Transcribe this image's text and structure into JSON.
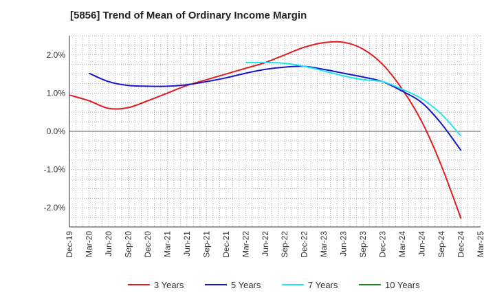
{
  "chart_data": {
    "type": "line",
    "title": "[5856]  Trend of Mean of Ordinary Income Margin",
    "xlabel": "",
    "ylabel": "",
    "x_ticks": [
      "Dec-19",
      "Mar-20",
      "Jun-20",
      "Sep-20",
      "Dec-20",
      "Mar-21",
      "Jun-21",
      "Sep-21",
      "Dec-21",
      "Mar-22",
      "Jun-22",
      "Sep-22",
      "Dec-22",
      "Mar-23",
      "Jun-23",
      "Sep-23",
      "Dec-23",
      "Mar-24",
      "Jun-24",
      "Sep-24",
      "Dec-24",
      "Mar-25"
    ],
    "y_ticks": [
      "2.0%",
      "1.0%",
      "0.0%",
      "-1.0%",
      "-2.0%"
    ],
    "y_tick_values": [
      2.0,
      1.0,
      0.0,
      -1.0,
      -2.0
    ],
    "ylim": [
      -2.5,
      2.5
    ],
    "grid": true,
    "legend_position": "bottom",
    "series": [
      {
        "name": "3 Years",
        "color": "#e31a1c",
        "x": [
          "Dec-19",
          "Mar-20",
          "Jun-20",
          "Sep-20",
          "Dec-20",
          "Mar-21",
          "Jun-21",
          "Sep-21",
          "Dec-21",
          "Mar-22",
          "Jun-22",
          "Sep-22",
          "Dec-22",
          "Mar-23",
          "Jun-23",
          "Sep-23",
          "Dec-23",
          "Mar-24",
          "Jun-24",
          "Sep-24",
          "Dec-24"
        ],
        "values": [
          0.95,
          0.8,
          0.6,
          0.62,
          0.8,
          1.0,
          1.2,
          1.35,
          1.5,
          1.65,
          1.8,
          2.0,
          2.2,
          2.32,
          2.33,
          2.15,
          1.75,
          1.1,
          0.25,
          -0.9,
          -2.28
        ]
      },
      {
        "name": "5 Years",
        "color": "#1515c8",
        "x": [
          "Mar-20",
          "Jun-20",
          "Sep-20",
          "Dec-20",
          "Mar-21",
          "Jun-21",
          "Sep-21",
          "Dec-21",
          "Mar-22",
          "Jun-22",
          "Sep-22",
          "Dec-22",
          "Mar-23",
          "Jun-23",
          "Sep-23",
          "Dec-23",
          "Mar-24",
          "Jun-24",
          "Sep-24",
          "Dec-24"
        ],
        "values": [
          1.52,
          1.3,
          1.2,
          1.18,
          1.18,
          1.22,
          1.3,
          1.4,
          1.52,
          1.62,
          1.68,
          1.7,
          1.62,
          1.52,
          1.42,
          1.3,
          1.05,
          0.75,
          0.2,
          -0.5
        ]
      },
      {
        "name": "7 Years",
        "color": "#1ee6f0",
        "x": [
          "Mar-22",
          "Jun-22",
          "Sep-22",
          "Dec-22",
          "Mar-23",
          "Jun-23",
          "Sep-23",
          "Dec-23",
          "Mar-24",
          "Jun-24",
          "Sep-24",
          "Dec-24"
        ],
        "values": [
          1.8,
          1.8,
          1.78,
          1.7,
          1.58,
          1.45,
          1.35,
          1.3,
          1.1,
          0.85,
          0.45,
          -0.12
        ]
      },
      {
        "name": "10 Years",
        "color": "#1a8a1a",
        "x": [],
        "values": []
      }
    ]
  }
}
